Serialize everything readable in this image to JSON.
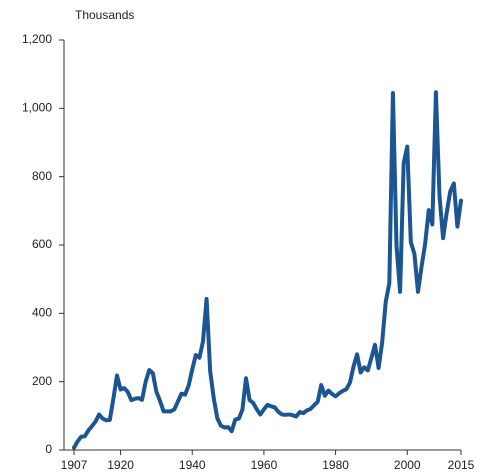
{
  "chart_data": {
    "type": "line",
    "y_axis_label": "Thousands",
    "x": [
      1907,
      1908,
      1909,
      1910,
      1911,
      1912,
      1913,
      1914,
      1915,
      1916,
      1917,
      1918,
      1919,
      1920,
      1921,
      1922,
      1923,
      1924,
      1925,
      1926,
      1927,
      1928,
      1929,
      1930,
      1931,
      1932,
      1933,
      1934,
      1935,
      1936,
      1937,
      1938,
      1939,
      1940,
      1941,
      1942,
      1943,
      1944,
      1945,
      1946,
      1947,
      1948,
      1949,
      1950,
      1951,
      1952,
      1953,
      1954,
      1955,
      1956,
      1957,
      1958,
      1959,
      1960,
      1961,
      1962,
      1963,
      1964,
      1965,
      1966,
      1967,
      1968,
      1969,
      1970,
      1971,
      1972,
      1973,
      1974,
      1975,
      1976,
      1977,
      1978,
      1979,
      1980,
      1981,
      1982,
      1983,
      1984,
      1985,
      1986,
      1987,
      1988,
      1989,
      1990,
      1991,
      1992,
      1993,
      1994,
      1995,
      1996,
      1997,
      1998,
      1999,
      2000,
      2001,
      2002,
      2003,
      2004,
      2005,
      2006,
      2007,
      2008,
      2009,
      2010,
      2011,
      2012,
      2013,
      2014,
      2015
    ],
    "series": [
      {
        "color": "#1b5592",
        "values": [
          7,
          25,
          39,
          40,
          57,
          70,
          83,
          104,
          92,
          87,
          88,
          151,
          218,
          177,
          181,
          170,
          146,
          150,
          152,
          147,
          200,
          234,
          225,
          170,
          144,
          113,
          113,
          113,
          119,
          142,
          165,
          162,
          189,
          236,
          278,
          270,
          318,
          442,
          231,
          151,
          93,
          71,
          66,
          67,
          55,
          89,
          92,
          118,
          210,
          146,
          138,
          119,
          104,
          119,
          132,
          128,
          125,
          112,
          104,
          103,
          104,
          102,
          98,
          111,
          108,
          116,
          120,
          131,
          141,
          190,
          159,
          174,
          164,
          157,
          166,
          173,
          178,
          197,
          244,
          280,
          227,
          242,
          233,
          270,
          308,
          240,
          315,
          434,
          488,
          1045,
          598,
          463,
          839,
          888,
          608,
          574,
          463,
          537,
          604,
          702,
          660,
          1047,
          744,
          620,
          694,
          757,
          780,
          654,
          730
        ]
      }
    ],
    "xlim": [
      1907,
      2015
    ],
    "xticks": [
      1907,
      1920,
      1940,
      1960,
      1980,
      2000,
      2015
    ],
    "ylim": [
      0,
      1200
    ],
    "yticks": [
      0,
      200,
      400,
      600,
      800,
      {
        "value": 1000,
        "label": "1,000"
      },
      {
        "value": 1200,
        "label": "1,200"
      }
    ]
  }
}
